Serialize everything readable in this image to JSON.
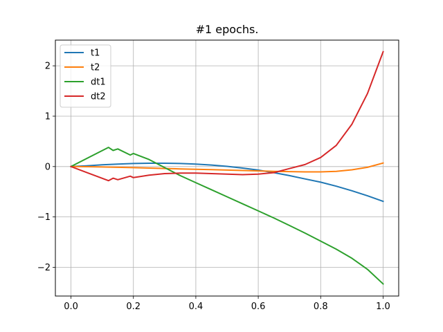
{
  "chart_data": {
    "type": "line",
    "title": "#1 epochs.",
    "xlabel": "",
    "ylabel": "",
    "xlim": [
      -0.05,
      1.05
    ],
    "ylim": [
      -2.57,
      2.51
    ],
    "xticks": [
      0.0,
      0.2,
      0.4,
      0.6,
      0.8,
      1.0
    ],
    "xtick_labels": [
      "0.0",
      "0.2",
      "0.4",
      "0.6",
      "0.8",
      "1.0"
    ],
    "yticks": [
      -2,
      -1,
      0,
      1,
      2
    ],
    "ytick_labels": [
      "−2",
      "−1",
      "0",
      "1",
      "2"
    ],
    "grid": true,
    "legend_position": "top-left",
    "series": [
      {
        "name": "t1",
        "color": "#1f77b4",
        "x": [
          0.0,
          0.05,
          0.1,
          0.15,
          0.2,
          0.25,
          0.3,
          0.35,
          0.4,
          0.45,
          0.5,
          0.55,
          0.6,
          0.65,
          0.7,
          0.75,
          0.8,
          0.85,
          0.9,
          0.95,
          1.0
        ],
        "y": [
          0.0,
          0.015,
          0.035,
          0.05,
          0.06,
          0.066,
          0.066,
          0.06,
          0.048,
          0.03,
          0.005,
          -0.03,
          -0.07,
          -0.12,
          -0.18,
          -0.245,
          -0.31,
          -0.39,
          -0.48,
          -0.58,
          -0.69
        ]
      },
      {
        "name": "t2",
        "color": "#ff7f0e",
        "x": [
          0.0,
          0.05,
          0.1,
          0.15,
          0.2,
          0.25,
          0.3,
          0.35,
          0.4,
          0.45,
          0.5,
          0.55,
          0.6,
          0.65,
          0.7,
          0.75,
          0.8,
          0.85,
          0.9,
          0.95,
          1.0
        ],
        "y": [
          0.0,
          -0.003,
          -0.008,
          -0.015,
          -0.022,
          -0.03,
          -0.038,
          -0.046,
          -0.054,
          -0.062,
          -0.07,
          -0.078,
          -0.086,
          -0.094,
          -0.1,
          -0.105,
          -0.105,
          -0.095,
          -0.065,
          -0.015,
          0.07
        ]
      },
      {
        "name": "dt1",
        "color": "#2ca02c",
        "x": [
          0.0,
          0.12,
          0.135,
          0.15,
          0.19,
          0.2,
          0.25,
          0.3,
          0.35,
          0.4,
          0.45,
          0.5,
          0.55,
          0.6,
          0.65,
          0.7,
          0.75,
          0.8,
          0.85,
          0.9,
          0.95,
          1.0
        ],
        "y": [
          0.0,
          0.38,
          0.32,
          0.35,
          0.23,
          0.26,
          0.14,
          -0.02,
          -0.18,
          -0.32,
          -0.46,
          -0.6,
          -0.74,
          -0.88,
          -1.02,
          -1.17,
          -1.32,
          -1.48,
          -1.64,
          -1.82,
          -2.04,
          -2.33
        ]
      },
      {
        "name": "dt2",
        "color": "#d62728",
        "x": [
          0.0,
          0.12,
          0.135,
          0.15,
          0.19,
          0.2,
          0.25,
          0.3,
          0.35,
          0.4,
          0.45,
          0.5,
          0.55,
          0.6,
          0.65,
          0.7,
          0.75,
          0.8,
          0.85,
          0.9,
          0.95,
          1.0
        ],
        "y": [
          0.0,
          -0.28,
          -0.23,
          -0.26,
          -0.19,
          -0.22,
          -0.17,
          -0.14,
          -0.13,
          -0.13,
          -0.14,
          -0.15,
          -0.16,
          -0.15,
          -0.12,
          -0.04,
          0.04,
          0.18,
          0.42,
          0.84,
          1.45,
          2.28
        ]
      }
    ]
  }
}
